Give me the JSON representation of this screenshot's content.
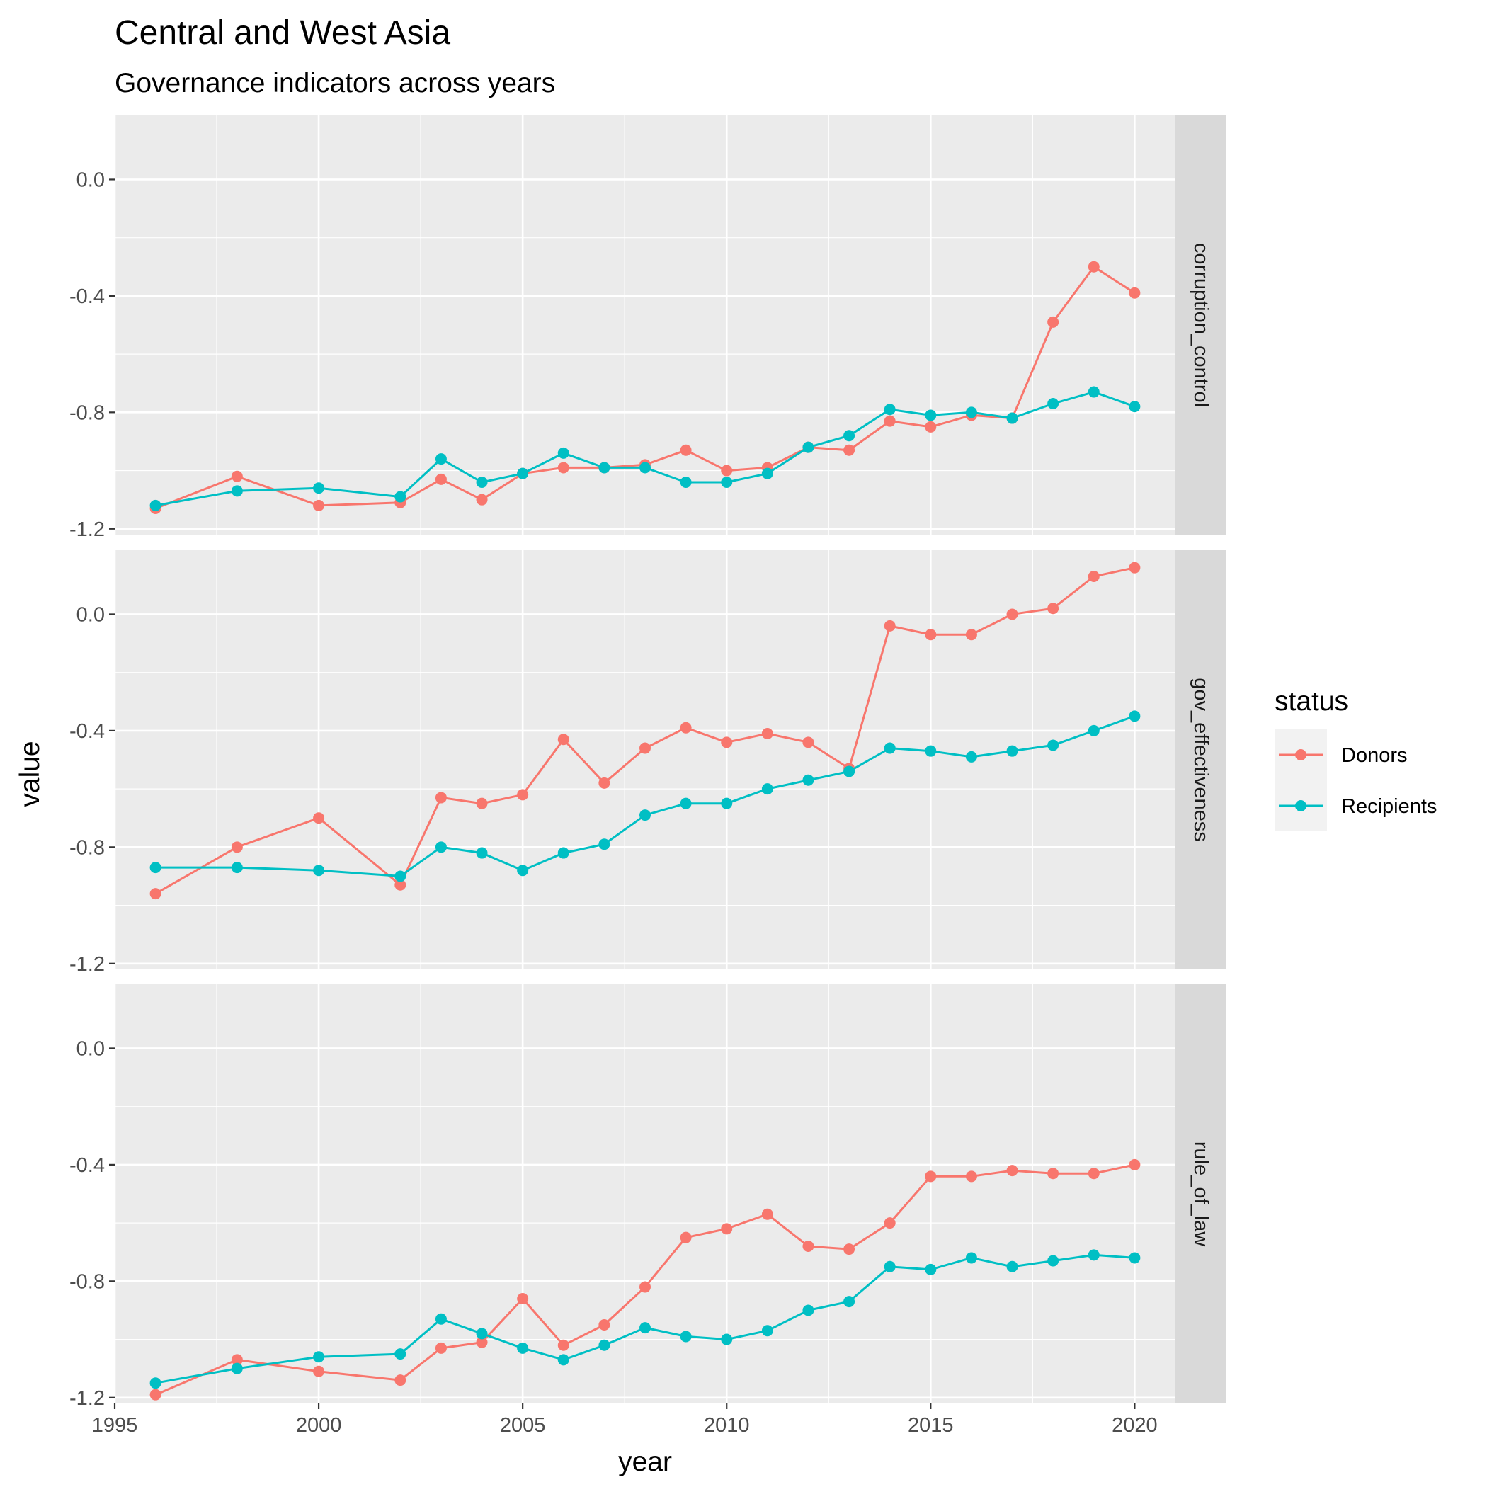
{
  "chart_data": {
    "type": "line",
    "title": "Central and West Asia",
    "subtitle": "Governance indicators across years",
    "xlabel": "year",
    "ylabel": "value",
    "xlim": [
      1995,
      2021
    ],
    "ylim": [
      -1.22,
      0.22
    ],
    "x_ticks": [
      1995,
      2000,
      2005,
      2010,
      2015,
      2020
    ],
    "x_tick_labels": [
      "1995",
      "2000",
      "2005",
      "2010",
      "2015",
      "2020"
    ],
    "y_ticks": [
      0.0,
      -0.4,
      -0.8,
      -1.2
    ],
    "y_tick_labels": [
      "0.0",
      "-0.4",
      "-0.8",
      "-1.2"
    ],
    "grid": true,
    "legend": {
      "title": "status",
      "position": "right"
    },
    "x": [
      1996,
      1998,
      2000,
      2002,
      2003,
      2004,
      2005,
      2006,
      2007,
      2008,
      2009,
      2010,
      2011,
      2012,
      2013,
      2014,
      2015,
      2016,
      2017,
      2018,
      2019,
      2020
    ],
    "series_styles": [
      {
        "name": "Donors",
        "color": "#F8766D"
      },
      {
        "name": "Recipients",
        "color": "#00BFC4"
      }
    ],
    "facets": [
      {
        "label": "corruption_control",
        "series": [
          {
            "name": "Donors",
            "values": [
              -1.13,
              -1.02,
              -1.12,
              -1.11,
              -1.03,
              -1.1,
              -1.01,
              -0.99,
              -0.99,
              -0.98,
              -0.93,
              -1.0,
              -0.99,
              -0.92,
              -0.93,
              -0.83,
              -0.85,
              -0.81,
              -0.82,
              -0.49,
              -0.3,
              -0.39
            ]
          },
          {
            "name": "Recipients",
            "values": [
              -1.12,
              -1.07,
              -1.06,
              -1.09,
              -0.96,
              -1.04,
              -1.01,
              -0.94,
              -0.99,
              -0.99,
              -1.04,
              -1.04,
              -1.01,
              -0.92,
              -0.88,
              -0.79,
              -0.81,
              -0.8,
              -0.82,
              -0.77,
              -0.73,
              -0.78
            ]
          }
        ]
      },
      {
        "label": "gov_effectiveness",
        "series": [
          {
            "name": "Donors",
            "values": [
              -0.96,
              -0.8,
              -0.7,
              -0.93,
              -0.63,
              -0.65,
              -0.62,
              -0.43,
              -0.58,
              -0.46,
              -0.39,
              -0.44,
              -0.41,
              -0.44,
              -0.53,
              -0.04,
              -0.07,
              -0.07,
              0.0,
              0.02,
              0.13,
              0.16
            ]
          },
          {
            "name": "Recipients",
            "values": [
              -0.87,
              -0.87,
              -0.88,
              -0.9,
              -0.8,
              -0.82,
              -0.88,
              -0.82,
              -0.79,
              -0.69,
              -0.65,
              -0.65,
              -0.6,
              -0.57,
              -0.54,
              -0.46,
              -0.47,
              -0.49,
              -0.47,
              -0.45,
              -0.4,
              -0.35
            ]
          }
        ]
      },
      {
        "label": "rule_of_law",
        "series": [
          {
            "name": "Donors",
            "values": [
              -1.19,
              -1.07,
              -1.11,
              -1.14,
              -1.03,
              -1.01,
              -0.86,
              -1.02,
              -0.95,
              -0.82,
              -0.65,
              -0.62,
              -0.57,
              -0.68,
              -0.69,
              -0.6,
              -0.44,
              -0.44,
              -0.42,
              -0.43,
              -0.43,
              -0.4
            ]
          },
          {
            "name": "Recipients",
            "values": [
              -1.15,
              -1.1,
              -1.06,
              -1.05,
              -0.93,
              -0.98,
              -1.03,
              -1.07,
              -1.02,
              -0.96,
              -0.99,
              -1.0,
              -0.97,
              -0.9,
              -0.87,
              -0.75,
              -0.76,
              -0.72,
              -0.75,
              -0.73,
              -0.71,
              -0.72
            ]
          }
        ]
      }
    ]
  }
}
